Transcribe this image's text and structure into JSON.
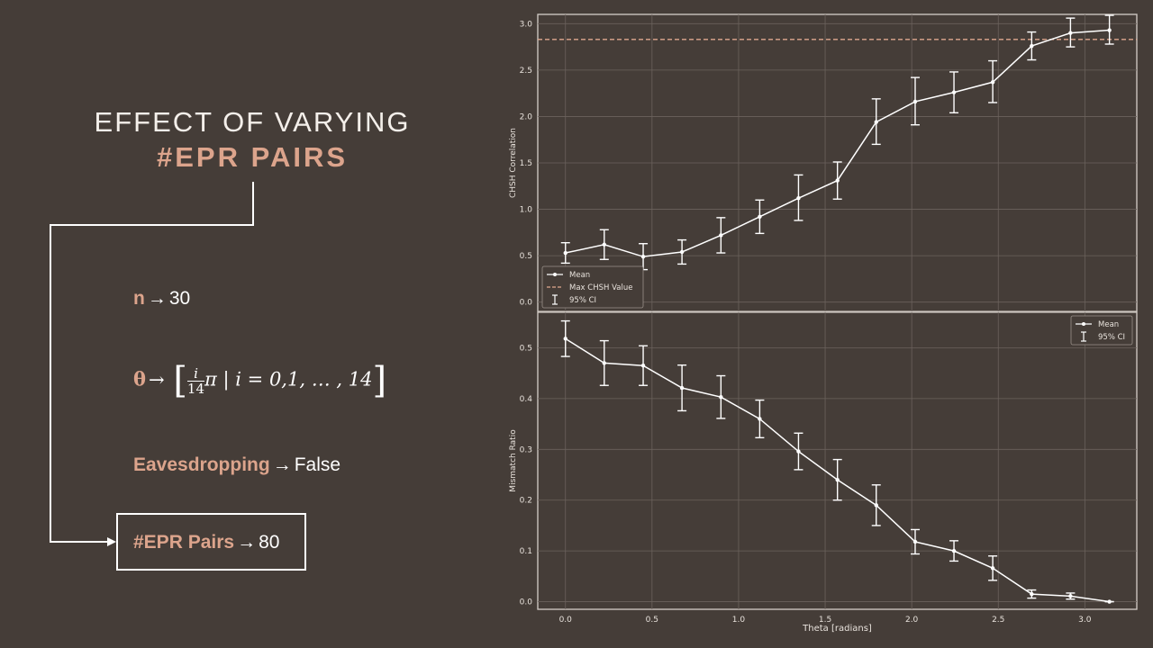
{
  "slide": {
    "title_line1": "EFFECT OF VARYING",
    "title_line2": "#EPR PAIRS"
  },
  "params": {
    "n": {
      "key": "n",
      "arrow": "→",
      "value": "30"
    },
    "theta": {
      "key": "θ",
      "arrow": "→",
      "lbracket": "[",
      "frac_num": "i",
      "frac_den": "14",
      "pi": "π",
      "bar": "|",
      "set": "i = 0,1, … , 14",
      "rbracket": "]"
    },
    "eaves": {
      "key": "Eavesdropping",
      "arrow": "→",
      "value": "False"
    },
    "epr": {
      "key": "#EPR Pairs",
      "arrow": "→",
      "value": "80"
    }
  },
  "colors": {
    "background": "#453d38",
    "accent": "#dca48c",
    "line": "#ffffff",
    "max_line": "#e0a88f",
    "grid": "#6b625c"
  },
  "chart_data": [
    {
      "type": "line",
      "xlabel": "",
      "ylabel": "CHSH Correlation",
      "xlim": [
        -0.16,
        3.3
      ],
      "ylim": [
        -0.1,
        3.1
      ],
      "x_ticks": [
        "0.0",
        "0.5",
        "1.0",
        "1.5",
        "2.0",
        "2.5",
        "3.0"
      ],
      "y_ticks": [
        "0.0",
        "0.5",
        "1.0",
        "1.5",
        "2.0",
        "2.5",
        "3.0"
      ],
      "grid": true,
      "legend_position": "bottom-left",
      "legend": {
        "mean": "Mean",
        "max": "Max CHSH Value",
        "ci": "95% CI"
      },
      "max_value": 2.83,
      "x": [
        0.0,
        0.224,
        0.449,
        0.673,
        0.898,
        1.122,
        1.346,
        1.571,
        1.795,
        2.02,
        2.244,
        2.468,
        2.693,
        2.917,
        3.142
      ],
      "mean": [
        0.53,
        0.62,
        0.49,
        0.54,
        0.72,
        0.92,
        1.12,
        1.31,
        1.94,
        2.16,
        2.26,
        2.37,
        2.76,
        2.9,
        2.93
      ],
      "ci_low": [
        0.42,
        0.46,
        0.35,
        0.41,
        0.53,
        0.74,
        0.88,
        1.11,
        1.7,
        1.91,
        2.04,
        2.15,
        2.61,
        2.75,
        2.78
      ],
      "ci_high": [
        0.64,
        0.78,
        0.63,
        0.67,
        0.91,
        1.1,
        1.37,
        1.51,
        2.19,
        2.42,
        2.48,
        2.6,
        2.91,
        3.06,
        3.09
      ]
    },
    {
      "type": "line",
      "xlabel": "Theta [radians]",
      "ylabel": "Mismatch Ratio",
      "xlim": [
        -0.16,
        3.3
      ],
      "ylim": [
        -0.015,
        0.57
      ],
      "x_ticks": [
        "0.0",
        "0.5",
        "1.0",
        "1.5",
        "2.0",
        "2.5",
        "3.0"
      ],
      "y_ticks": [
        "0.0",
        "0.1",
        "0.2",
        "0.3",
        "0.4",
        "0.5"
      ],
      "grid": true,
      "legend_position": "top-right",
      "legend": {
        "mean": "Mean",
        "ci": "95% CI"
      },
      "x": [
        0.0,
        0.224,
        0.449,
        0.673,
        0.898,
        1.122,
        1.346,
        1.571,
        1.795,
        2.02,
        2.244,
        2.468,
        2.693,
        2.917,
        3.142
      ],
      "mean": [
        0.518,
        0.47,
        0.465,
        0.421,
        0.403,
        0.36,
        0.296,
        0.24,
        0.19,
        0.118,
        0.1,
        0.066,
        0.015,
        0.011,
        0.0
      ],
      "ci_low": [
        0.483,
        0.426,
        0.426,
        0.376,
        0.361,
        0.323,
        0.26,
        0.2,
        0.15,
        0.094,
        0.08,
        0.042,
        0.007,
        0.005,
        0.0
      ],
      "ci_high": [
        0.553,
        0.514,
        0.504,
        0.466,
        0.445,
        0.397,
        0.332,
        0.28,
        0.23,
        0.142,
        0.12,
        0.09,
        0.023,
        0.017,
        0.0
      ]
    }
  ]
}
